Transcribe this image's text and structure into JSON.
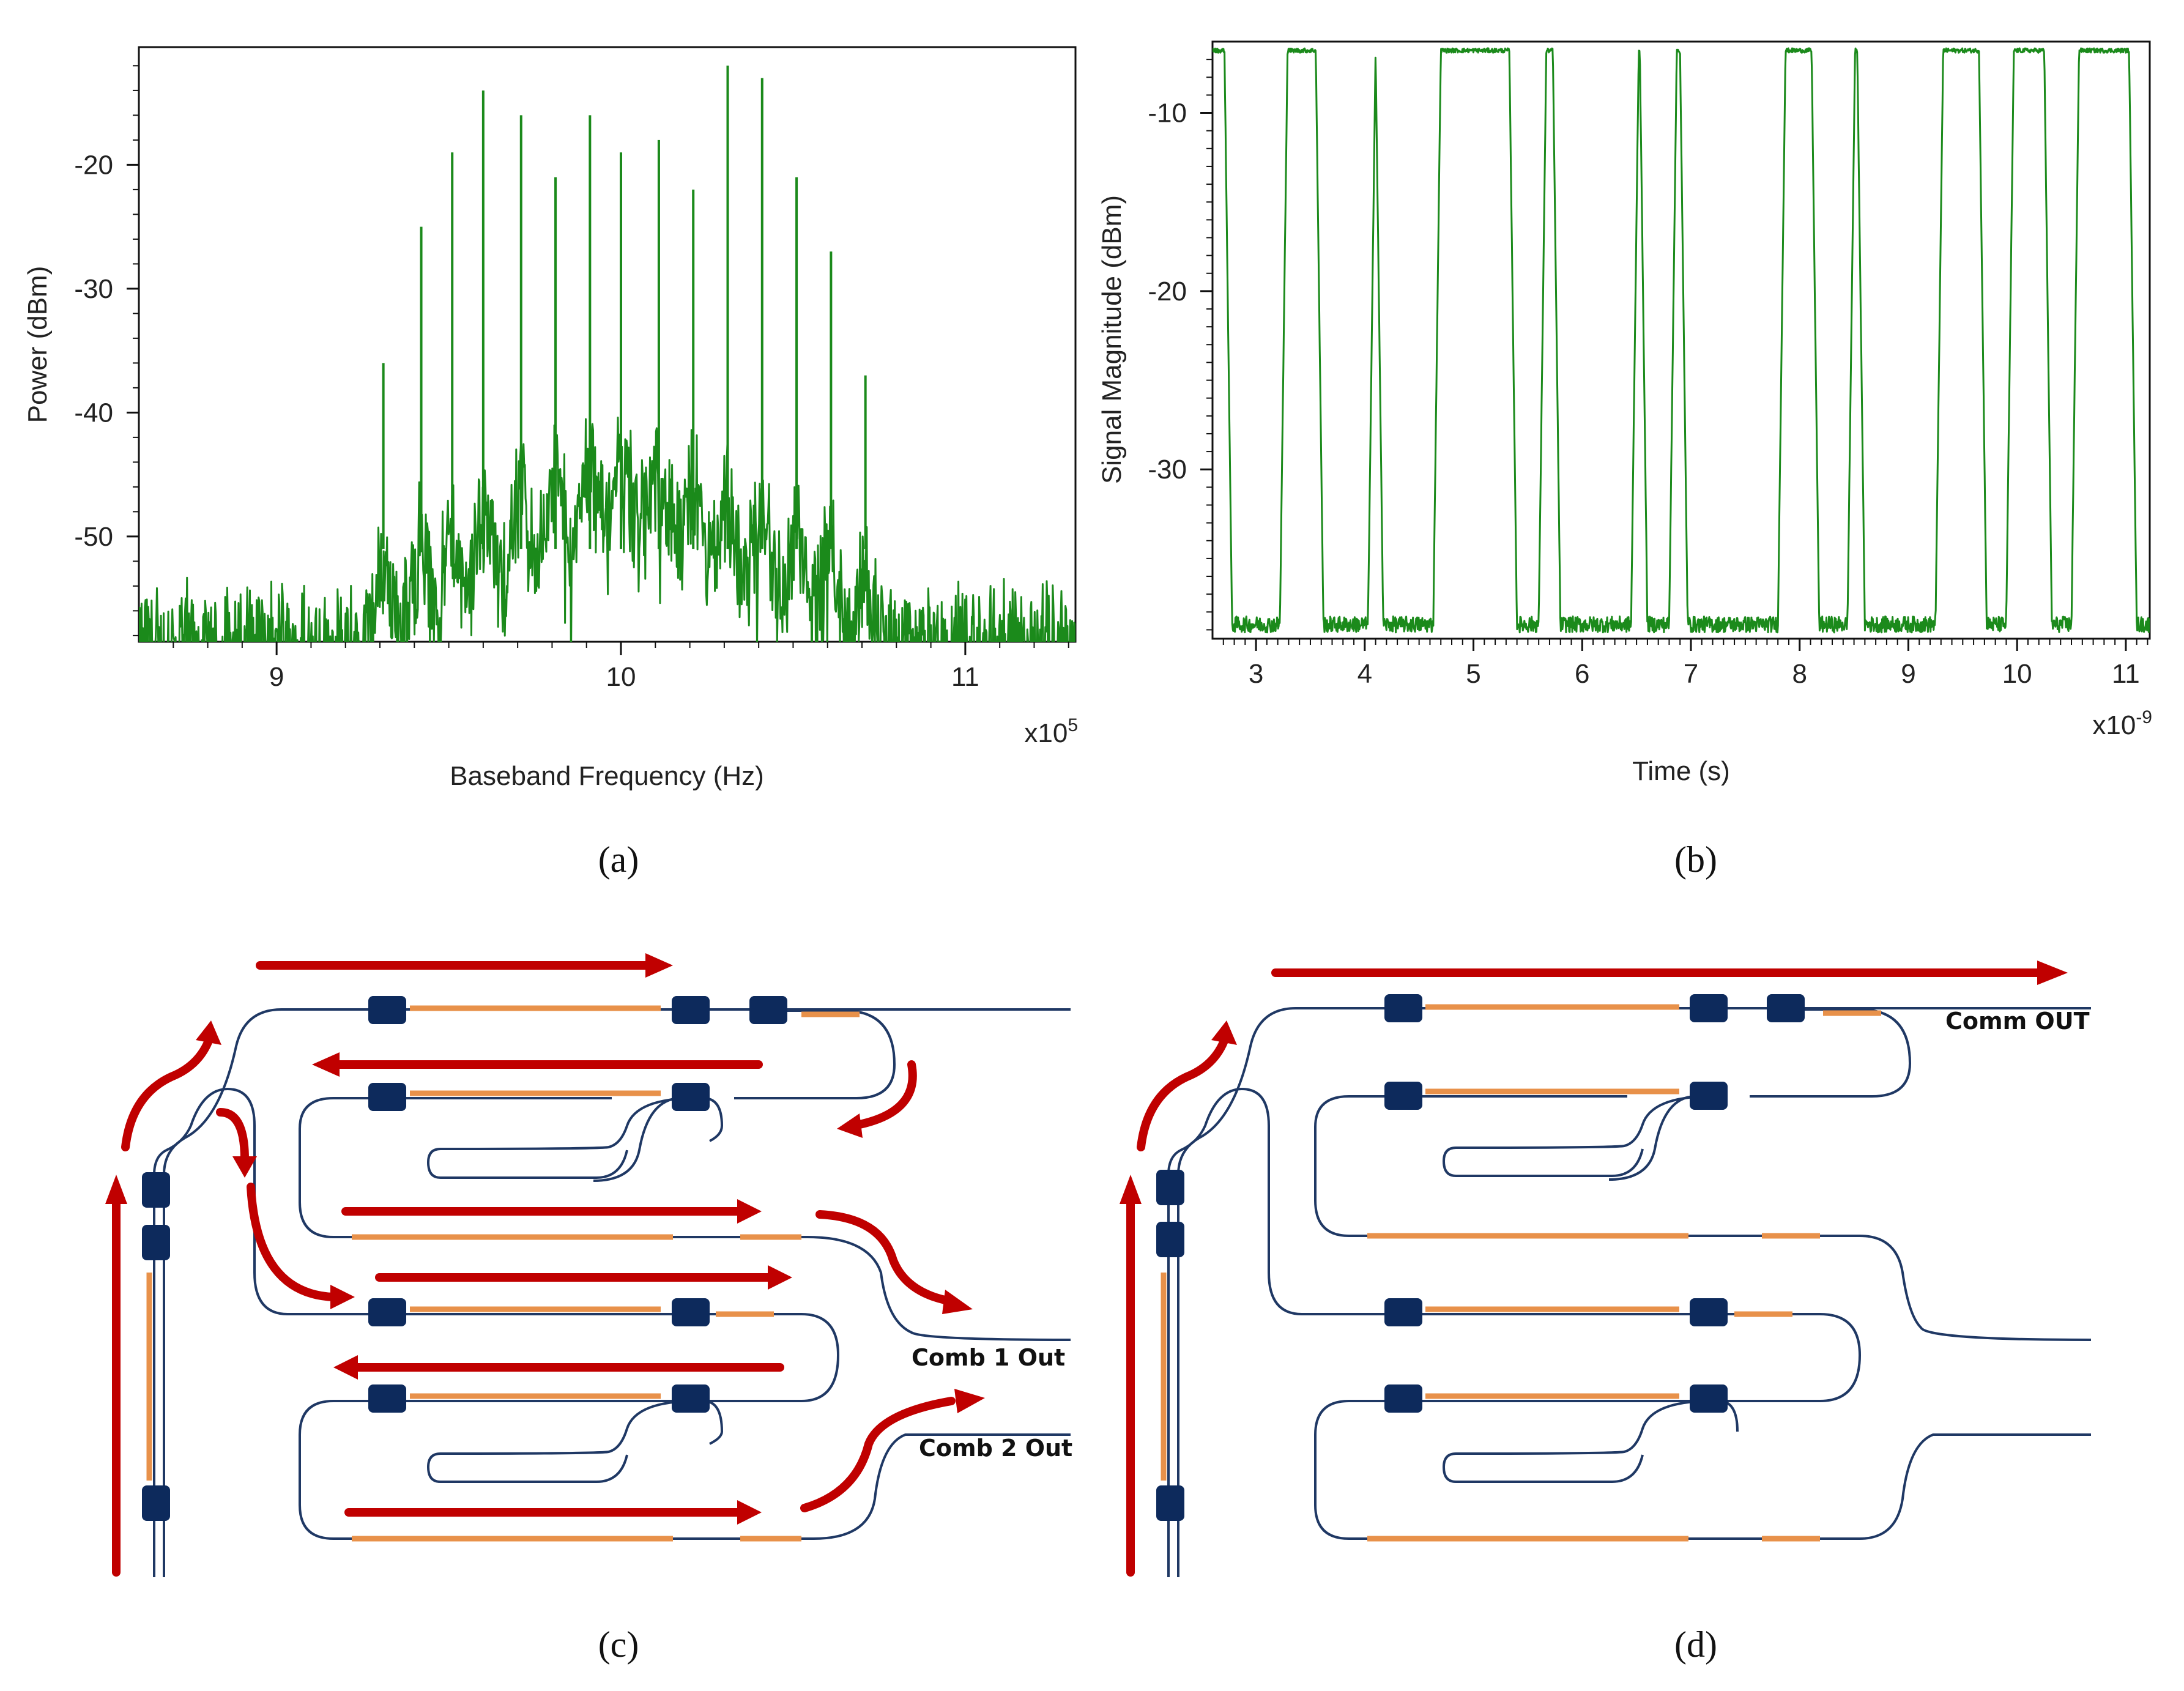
{
  "captions": {
    "a": "(a)",
    "b": "(b)",
    "c": "(c)",
    "d": "(d)"
  },
  "colors": {
    "trace": "#1b8a1b",
    "waveguide": "#1f3864",
    "heater": "#e8914a",
    "arrow": "#c00000",
    "pad": "#0d2a5c"
  },
  "chart_data": [
    {
      "id": "a",
      "type": "line",
      "title": "",
      "xlabel": "Baseband Frequency (Hz)",
      "ylabel": "Power (dBm)",
      "x_multiplier": "x10",
      "x_multiplier_exp": "5",
      "xlim": [
        8.6,
        11.32
      ],
      "ylim": [
        -58.5,
        -10.5
      ],
      "xticks": [
        9,
        10,
        11
      ],
      "xtick_labels": [
        "9",
        "10",
        "11"
      ],
      "yticks": [
        -20,
        -30,
        -40,
        -50
      ],
      "ytick_labels": [
        "-20",
        "-30",
        "-40",
        "-50"
      ],
      "noise_floor": -57,
      "peaks": [
        {
          "x": 9.31,
          "y": -36
        },
        {
          "x": 9.42,
          "y": -25
        },
        {
          "x": 9.51,
          "y": -19
        },
        {
          "x": 9.6,
          "y": -14
        },
        {
          "x": 9.71,
          "y": -16
        },
        {
          "x": 9.81,
          "y": -21
        },
        {
          "x": 9.91,
          "y": -16
        },
        {
          "x": 10.0,
          "y": -19
        },
        {
          "x": 10.11,
          "y": -18
        },
        {
          "x": 10.21,
          "y": -22
        },
        {
          "x": 10.31,
          "y": -12
        },
        {
          "x": 10.41,
          "y": -13
        },
        {
          "x": 10.51,
          "y": -21
        },
        {
          "x": 10.61,
          "y": -27
        },
        {
          "x": 10.71,
          "y": -37
        }
      ]
    },
    {
      "id": "b",
      "type": "line",
      "title": "",
      "xlabel": "Time (s)",
      "ylabel": "Signal Magnitude (dBm)",
      "x_multiplier": "x10",
      "x_multiplier_exp": "-9",
      "xlim": [
        2.6,
        11.22
      ],
      "ylim": [
        -39.5,
        -6
      ],
      "xticks": [
        3,
        4,
        5,
        6,
        7,
        8,
        9,
        10,
        11
      ],
      "xtick_labels": [
        "3",
        "4",
        "5",
        "6",
        "7",
        "8",
        "9",
        "10",
        "11"
      ],
      "yticks": [
        -10,
        -20,
        -30
      ],
      "ytick_labels": [
        "-10",
        "-20",
        "-30"
      ],
      "high_level": -6.5,
      "low_level": -38.7,
      "high_intervals": [
        [
          2.6,
          2.78
        ],
        [
          3.22,
          3.62
        ],
        [
          4.03,
          4.17
        ],
        [
          4.63,
          5.4
        ],
        [
          5.6,
          5.8
        ],
        [
          6.45,
          6.6
        ],
        [
          6.8,
          6.97
        ],
        [
          7.8,
          8.18
        ],
        [
          8.44,
          8.6
        ],
        [
          9.25,
          9.72
        ],
        [
          9.9,
          10.32
        ],
        [
          10.5,
          11.1
        ]
      ]
    }
  ],
  "diagrams": {
    "c": {
      "labels": [
        "Comb 1 Out",
        "Comb 2 Out"
      ]
    },
    "d": {
      "labels": [
        "Comm OUT"
      ]
    }
  }
}
